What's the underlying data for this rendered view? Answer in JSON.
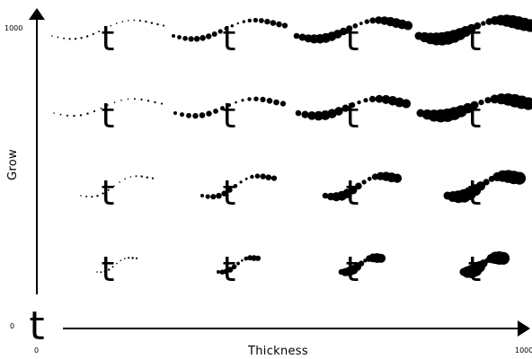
{
  "axes": {
    "x_title": "Thickness",
    "y_title": "Grow",
    "x_min_label": "0",
    "x_max_label": "1000",
    "y_min_label": "0",
    "y_max_label": "1000"
  },
  "origin_glyph": "t",
  "grid": {
    "columns": 4,
    "rows": 4,
    "glyph": "t"
  },
  "colors": {
    "ink": "#000000",
    "background": "#ffffff"
  }
}
